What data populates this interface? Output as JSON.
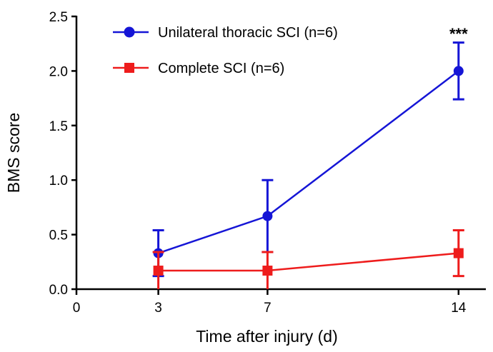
{
  "chart_data": {
    "type": "line",
    "title": "",
    "xlabel": "Time after injury (d)",
    "ylabel": "BMS score",
    "xlim": [
      0,
      15
    ],
    "ylim": [
      0,
      2.5
    ],
    "x_ticks": [
      0,
      3,
      7,
      14
    ],
    "y_ticks": [
      0.0,
      0.5,
      1.0,
      1.5,
      2.0,
      2.5
    ],
    "y_tick_labels": [
      "0.0",
      "0.5",
      "1.0",
      "1.5",
      "2.0",
      "2.5"
    ],
    "grid": false,
    "legend_position": "top-left",
    "series": [
      {
        "name": "Unilateral thoracic SCI (n=6)",
        "color": "#1515d6",
        "marker": "circle",
        "x": [
          3,
          7,
          14
        ],
        "y": [
          0.33,
          0.67,
          2.0
        ],
        "error": [
          0.21,
          0.33,
          0.26
        ]
      },
      {
        "name": "Complete SCI (n=6)",
        "color": "#ee1c1c",
        "marker": "square",
        "x": [
          3,
          7,
          14
        ],
        "y": [
          0.17,
          0.17,
          0.33
        ],
        "error": [
          0.17,
          0.17,
          0.21
        ]
      }
    ],
    "annotations": [
      {
        "text": "***",
        "x": 14,
        "y": 2.33
      }
    ]
  }
}
